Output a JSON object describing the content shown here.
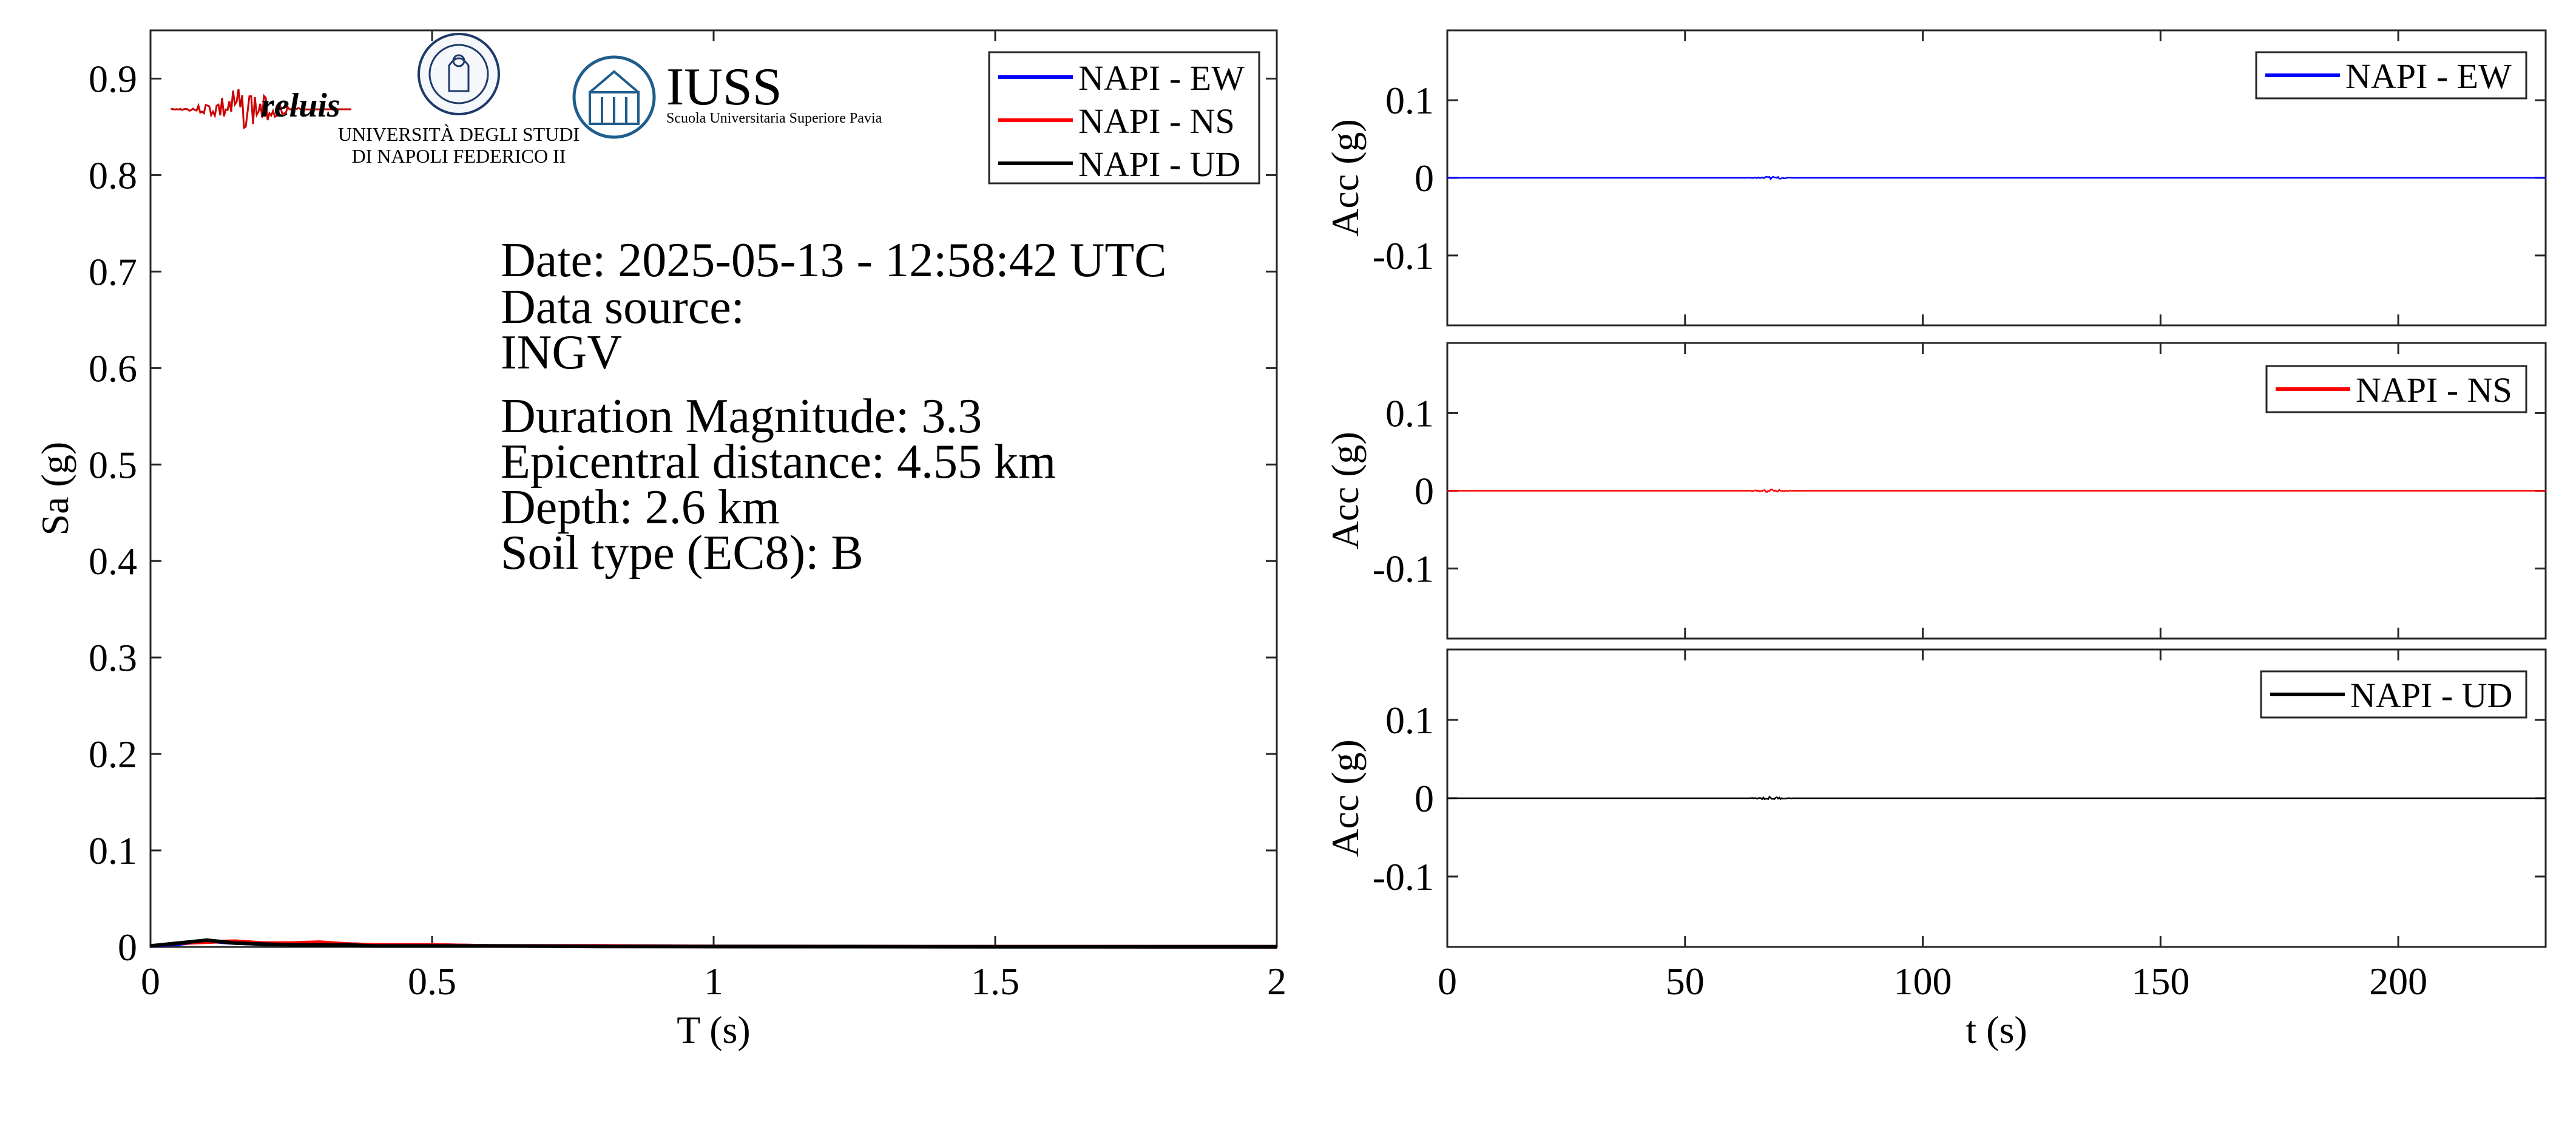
{
  "colors": {
    "ew": "#0000ff",
    "ns": "#ff0000",
    "ud": "#000000",
    "reluis_wave": "#cc0000",
    "reluis_text": "#2b2f7a",
    "unina": "#1d3a6b",
    "iuss": "#1f5d8c"
  },
  "logos": {
    "reluis": "reluis",
    "unina_line1": "UNIVERSITÀ DEGLI STUDI",
    "unina_line2": "DI NAPOLI FEDERICO II",
    "iuss_title": "IUSS",
    "iuss_subtitle": "Scuola Universitaria Superiore Pavia"
  },
  "info": {
    "date": "Date: 2025-05-13 - 12:58:42 UTC",
    "source_label": "Data source:",
    "source": "INGV",
    "magnitude": "Duration Magnitude: 3.3",
    "distance": "Epicentral distance: 4.55 km",
    "depth": "Depth: 2.6 km",
    "soil": "Soil type (EC8): B"
  },
  "chart_data": [
    {
      "type": "line",
      "xlabel": "T (s)",
      "ylabel": "Sa (g)",
      "xlim": [
        0,
        2
      ],
      "ylim": [
        0,
        0.95
      ],
      "xticks": [
        0,
        0.5,
        1,
        1.5,
        2
      ],
      "xticklabels": [
        "0",
        "0.5",
        "1",
        "1.5",
        "2"
      ],
      "yticks": [
        0,
        0.1,
        0.2,
        0.3,
        0.4,
        0.5,
        0.6,
        0.7,
        0.8,
        0.9
      ],
      "yticklabels": [
        "0",
        "0.1",
        "0.2",
        "0.3",
        "0.4",
        "0.5",
        "0.6",
        "0.7",
        "0.8",
        "0.9"
      ],
      "grid": false,
      "legend": "top-right",
      "x": [
        0,
        0.05,
        0.1,
        0.15,
        0.2,
        0.25,
        0.3,
        0.35,
        0.4,
        0.5,
        0.6,
        0.8,
        1.0,
        1.2,
        1.5,
        2.0
      ],
      "series": [
        {
          "name": "NAPI - EW",
          "color": "#0000ff",
          "values": [
            0.001,
            0.003,
            0.006,
            0.004,
            0.003,
            0.003,
            0.004,
            0.003,
            0.002,
            0.002,
            0.001,
            0.001,
            0.0005,
            0.0004,
            0.0003,
            0.0002
          ]
        },
        {
          "name": "NAPI - NS",
          "color": "#ff0000",
          "values": [
            0.001,
            0.004,
            0.005,
            0.006,
            0.004,
            0.004,
            0.005,
            0.003,
            0.002,
            0.002,
            0.001,
            0.001,
            0.0005,
            0.0004,
            0.0003,
            0.0002
          ]
        },
        {
          "name": "NAPI - UD",
          "color": "#000000",
          "values": [
            0.001,
            0.004,
            0.007,
            0.004,
            0.003,
            0.002,
            0.002,
            0.002,
            0.001,
            0.001,
            0.001,
            0.0005,
            0.0004,
            0.0003,
            0.0002,
            0.0001
          ]
        }
      ]
    },
    {
      "type": "line",
      "ylabel": "Acc (g)",
      "xlim": [
        0,
        231
      ],
      "ylim": [
        -0.19,
        0.19
      ],
      "yticks": [
        -0.1,
        0,
        0.1
      ],
      "yticklabels": [
        "-0.1",
        "0",
        "0.1"
      ],
      "legend": "top-right",
      "series": [
        {
          "name": "NAPI - EW",
          "color": "#0000ff",
          "burst_t": 68,
          "amplitude": 0.002
        }
      ]
    },
    {
      "type": "line",
      "ylabel": "Acc (g)",
      "xlim": [
        0,
        231
      ],
      "ylim": [
        -0.19,
        0.19
      ],
      "yticks": [
        -0.1,
        0,
        0.1
      ],
      "yticklabels": [
        "-0.1",
        "0",
        "0.1"
      ],
      "legend": "top-right",
      "series": [
        {
          "name": "NAPI - NS",
          "color": "#ff0000",
          "burst_t": 68,
          "amplitude": 0.002
        }
      ]
    },
    {
      "type": "line",
      "ylabel": "Acc (g)",
      "xlabel": "t (s)",
      "xlim": [
        0,
        231
      ],
      "ylim": [
        -0.19,
        0.19
      ],
      "xticks": [
        0,
        50,
        100,
        150,
        200
      ],
      "xticklabels": [
        "0",
        "50",
        "100",
        "150",
        "200"
      ],
      "yticks": [
        -0.1,
        0,
        0.1
      ],
      "yticklabels": [
        "-0.1",
        "0",
        "0.1"
      ],
      "legend": "top-right",
      "series": [
        {
          "name": "NAPI - UD",
          "color": "#000000",
          "burst_t": 68,
          "amplitude": 0.002
        }
      ]
    }
  ]
}
